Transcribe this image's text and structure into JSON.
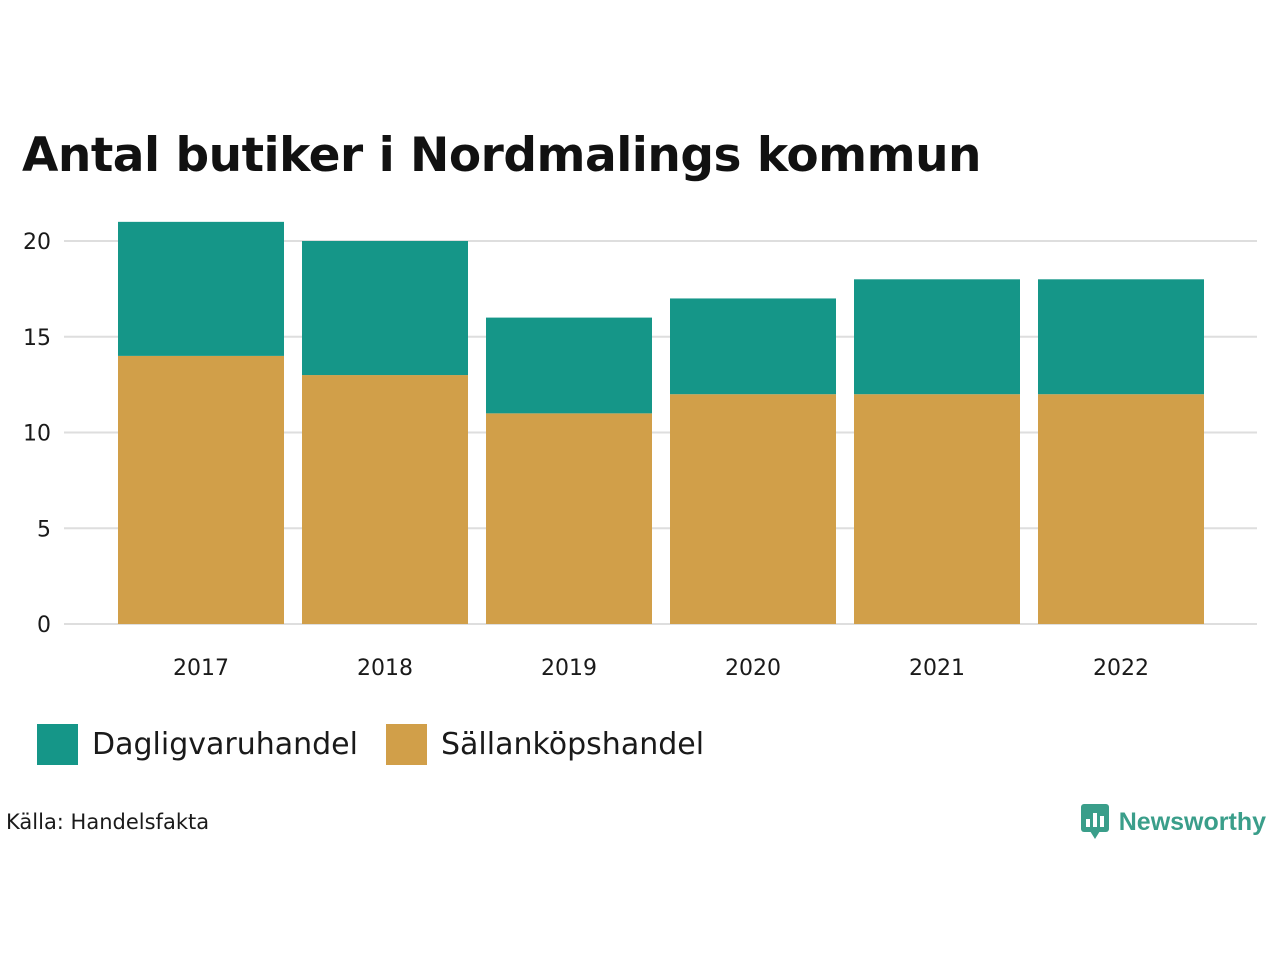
{
  "chart_data": {
    "type": "bar",
    "stacked": true,
    "title": "Antal butiker i Nordmalings kommun",
    "categories": [
      "2017",
      "2018",
      "2019",
      "2020",
      "2021",
      "2022"
    ],
    "series": [
      {
        "name": "Sällanköpshandel",
        "color": "#d19f49",
        "values": [
          14,
          13,
          11,
          12,
          12,
          12
        ]
      },
      {
        "name": "Dagligvaruhandel",
        "color": "#159688",
        "values": [
          7,
          7,
          5,
          5,
          6,
          6
        ]
      }
    ],
    "yticks": [
      "0",
      "5",
      "10",
      "15",
      "20"
    ],
    "ylim": [
      0,
      21
    ],
    "xlabel": "",
    "ylabel": "",
    "grid": true,
    "legend_position": "bottom-left"
  },
  "legend": {
    "items": [
      {
        "label": "Dagligvaruhandel",
        "color": "#159688"
      },
      {
        "label": "Sällanköpshandel",
        "color": "#d19f49"
      }
    ]
  },
  "footer": {
    "source": "Källa: Handelsfakta",
    "brand": "Newsworthy",
    "brand_icon": "newsworthy-logo-icon"
  }
}
